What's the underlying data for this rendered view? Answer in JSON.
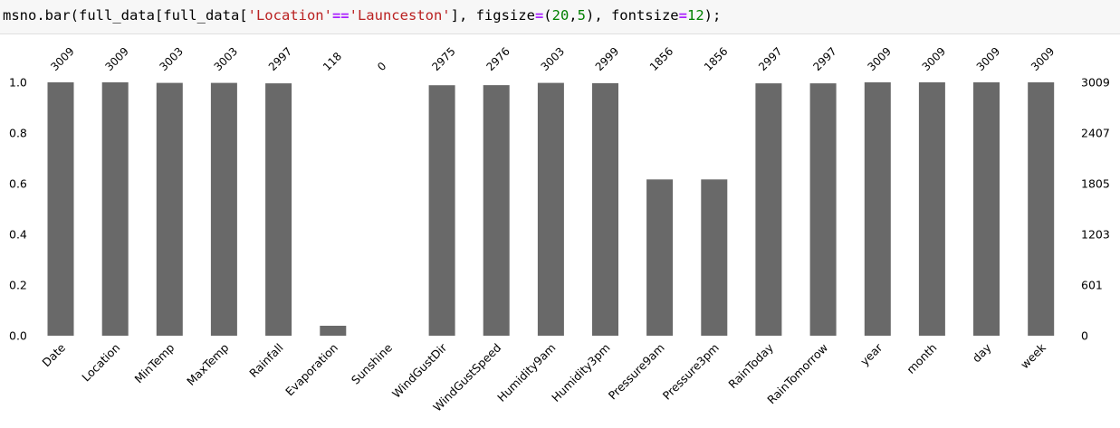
{
  "code": {
    "fn": "msno.bar",
    "arg_prefix": "(full_data[full_data[",
    "key_str": "'Location'",
    "eq_op": "==",
    "value_str": "'Launceston'",
    "mid": "], figsize",
    "assign1": "=",
    "open_paren": "(",
    "num1": "20",
    "comma": ",",
    "num2": "5",
    "mid2": "), fontsize",
    "assign2": "=",
    "num3": "12",
    "suffix": ");"
  },
  "chart_data": {
    "type": "bar",
    "title": "",
    "xlabel": "",
    "ylabel": "",
    "total_rows": 3009,
    "ylim": [
      0,
      1
    ],
    "left_ticks": [
      "0.0",
      "0.2",
      "0.4",
      "0.6",
      "0.8",
      "1.0"
    ],
    "right_ticks": [
      "0",
      "601",
      "1203",
      "1805",
      "2407",
      "3009"
    ],
    "grid": false,
    "bar_color": "#696969",
    "categories": [
      "Date",
      "Location",
      "MinTemp",
      "MaxTemp",
      "Rainfall",
      "Evaporation",
      "Sunshine",
      "WindGustDir",
      "WindGustSpeed",
      "Humidity9am",
      "Humidity3pm",
      "Pressure9am",
      "Pressure3pm",
      "RainToday",
      "RainTomorrow",
      "year",
      "month",
      "day",
      "week"
    ],
    "values": [
      3009,
      3009,
      3003,
      3003,
      2997,
      118,
      0,
      2975,
      2976,
      3003,
      2999,
      1856,
      1856,
      2997,
      2997,
      3009,
      3009,
      3009,
      3009
    ],
    "value_labels": [
      "3009",
      "3009",
      "3003",
      "3003",
      "2997",
      "118",
      "0",
      "2975",
      "2976",
      "3003",
      "2999",
      "1856",
      "1856",
      "2997",
      "2997",
      "3009",
      "3009",
      "3009",
      "3009"
    ]
  }
}
